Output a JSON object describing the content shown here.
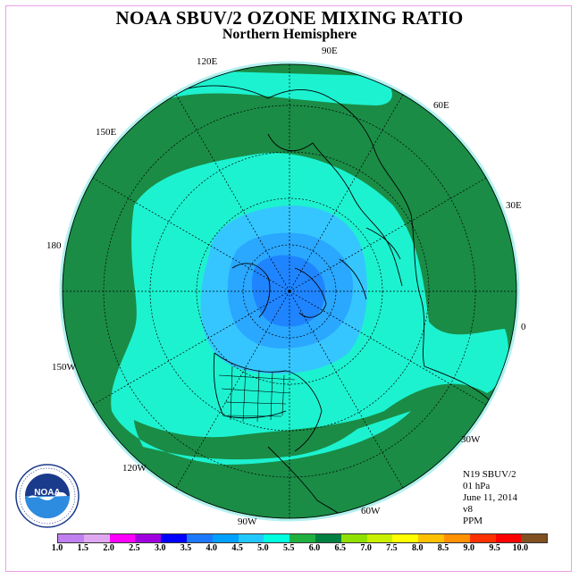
{
  "title": "NOAA SBUV/2 OZONE MIXING RATIO",
  "subtitle": "Northern Hemisphere",
  "longitude_labels": [
    "90E",
    "60E",
    "30E",
    "0",
    "30W",
    "60W",
    "90W",
    "120W",
    "150W",
    "180",
    "150E",
    "120E"
  ],
  "info": {
    "satellite": "N19 SBUV/2",
    "pressure": "01 hPa",
    "date": "June 11, 2014",
    "version": "v8",
    "units": "PPM"
  },
  "legend": {
    "ticks": [
      "1.0",
      "1.5",
      "2.0",
      "2.5",
      "3.0",
      "3.5",
      "4.0",
      "4.5",
      "5.0",
      "5.5",
      "6.0",
      "6.5",
      "7.0",
      "7.5",
      "8.0",
      "8.5",
      "9.0",
      "9.5",
      "10.0"
    ],
    "colors": [
      "#c080f0",
      "#e0a8f0",
      "#ff00ff",
      "#a000e0",
      "#0000ff",
      "#1e78ff",
      "#00a0ff",
      "#20c8ff",
      "#00ffe0",
      "#20b040",
      "#008040",
      "#90e000",
      "#c8f000",
      "#ffff00",
      "#ffc000",
      "#ff9000",
      "#ff3000",
      "#ff0000",
      "#805020"
    ]
  },
  "map_colors": {
    "water_band": "#b4f0f0",
    "band_5_5": "#1a8c46",
    "band_4_5": "#1cf2d0",
    "band_4_0": "#35c6ff",
    "band_3_5": "#2aa7ff",
    "band_3_0": "#1f84ff",
    "coast": "#000000"
  },
  "logo_text": "NOAA"
}
